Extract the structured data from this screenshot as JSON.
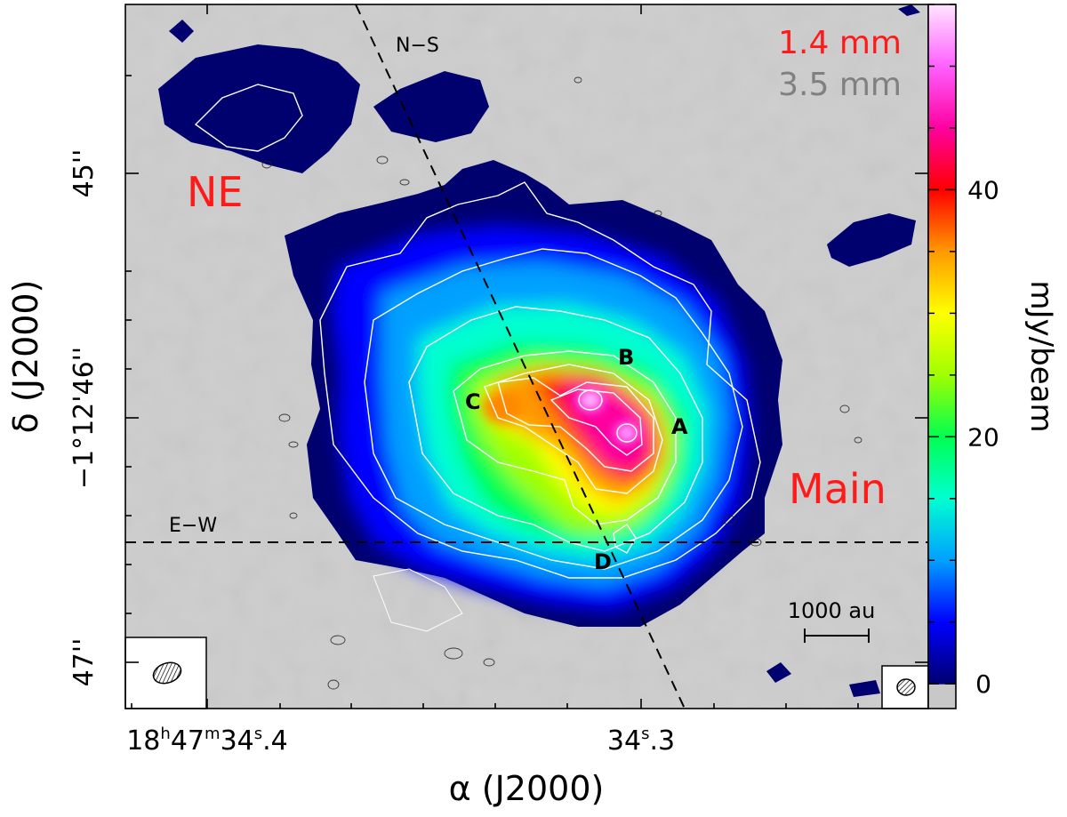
{
  "chart_data": {
    "type": "heatmap",
    "title": "",
    "xlabel": "α (J2000)",
    "ylabel": "δ (J2000)",
    "colorbar_label": "mJy/beam",
    "colorbar_range": [
      -2,
      55
    ],
    "colorbar_ticks": [
      "0",
      "20",
      "40"
    ],
    "colorbar_tick_values": [
      0,
      20,
      40
    ],
    "x_tick_labels": [
      {
        "h": "18",
        "m": "47",
        "s": "34",
        "frac": ".4",
        "text": "18h47m34.s4"
      },
      {
        "h": "",
        "m": "",
        "s": "34",
        "frac": ".3",
        "text": "34.s3"
      }
    ],
    "y_tick_labels": [
      "45''",
      "−1°12'46''",
      "47''"
    ],
    "legend": [
      {
        "label": "1.4 mm",
        "color": "#ff1a1a"
      },
      {
        "label": "3.5 mm",
        "color": "#808080"
      }
    ],
    "annotations": {
      "regions": [
        "NE",
        "Main"
      ],
      "cores": [
        "A",
        "B",
        "C",
        "D"
      ],
      "cuts": [
        "N−S",
        "E−W"
      ],
      "scale_bar": "1000 au"
    },
    "colormap": [
      "#c8c8c8",
      "#00006e",
      "#0000ff",
      "#00a0ff",
      "#00ffd0",
      "#00ff50",
      "#a0ff00",
      "#ffff00",
      "#ff9900",
      "#ff0000",
      "#ff00a0",
      "#ff60ff",
      "#ffe6ff"
    ]
  }
}
